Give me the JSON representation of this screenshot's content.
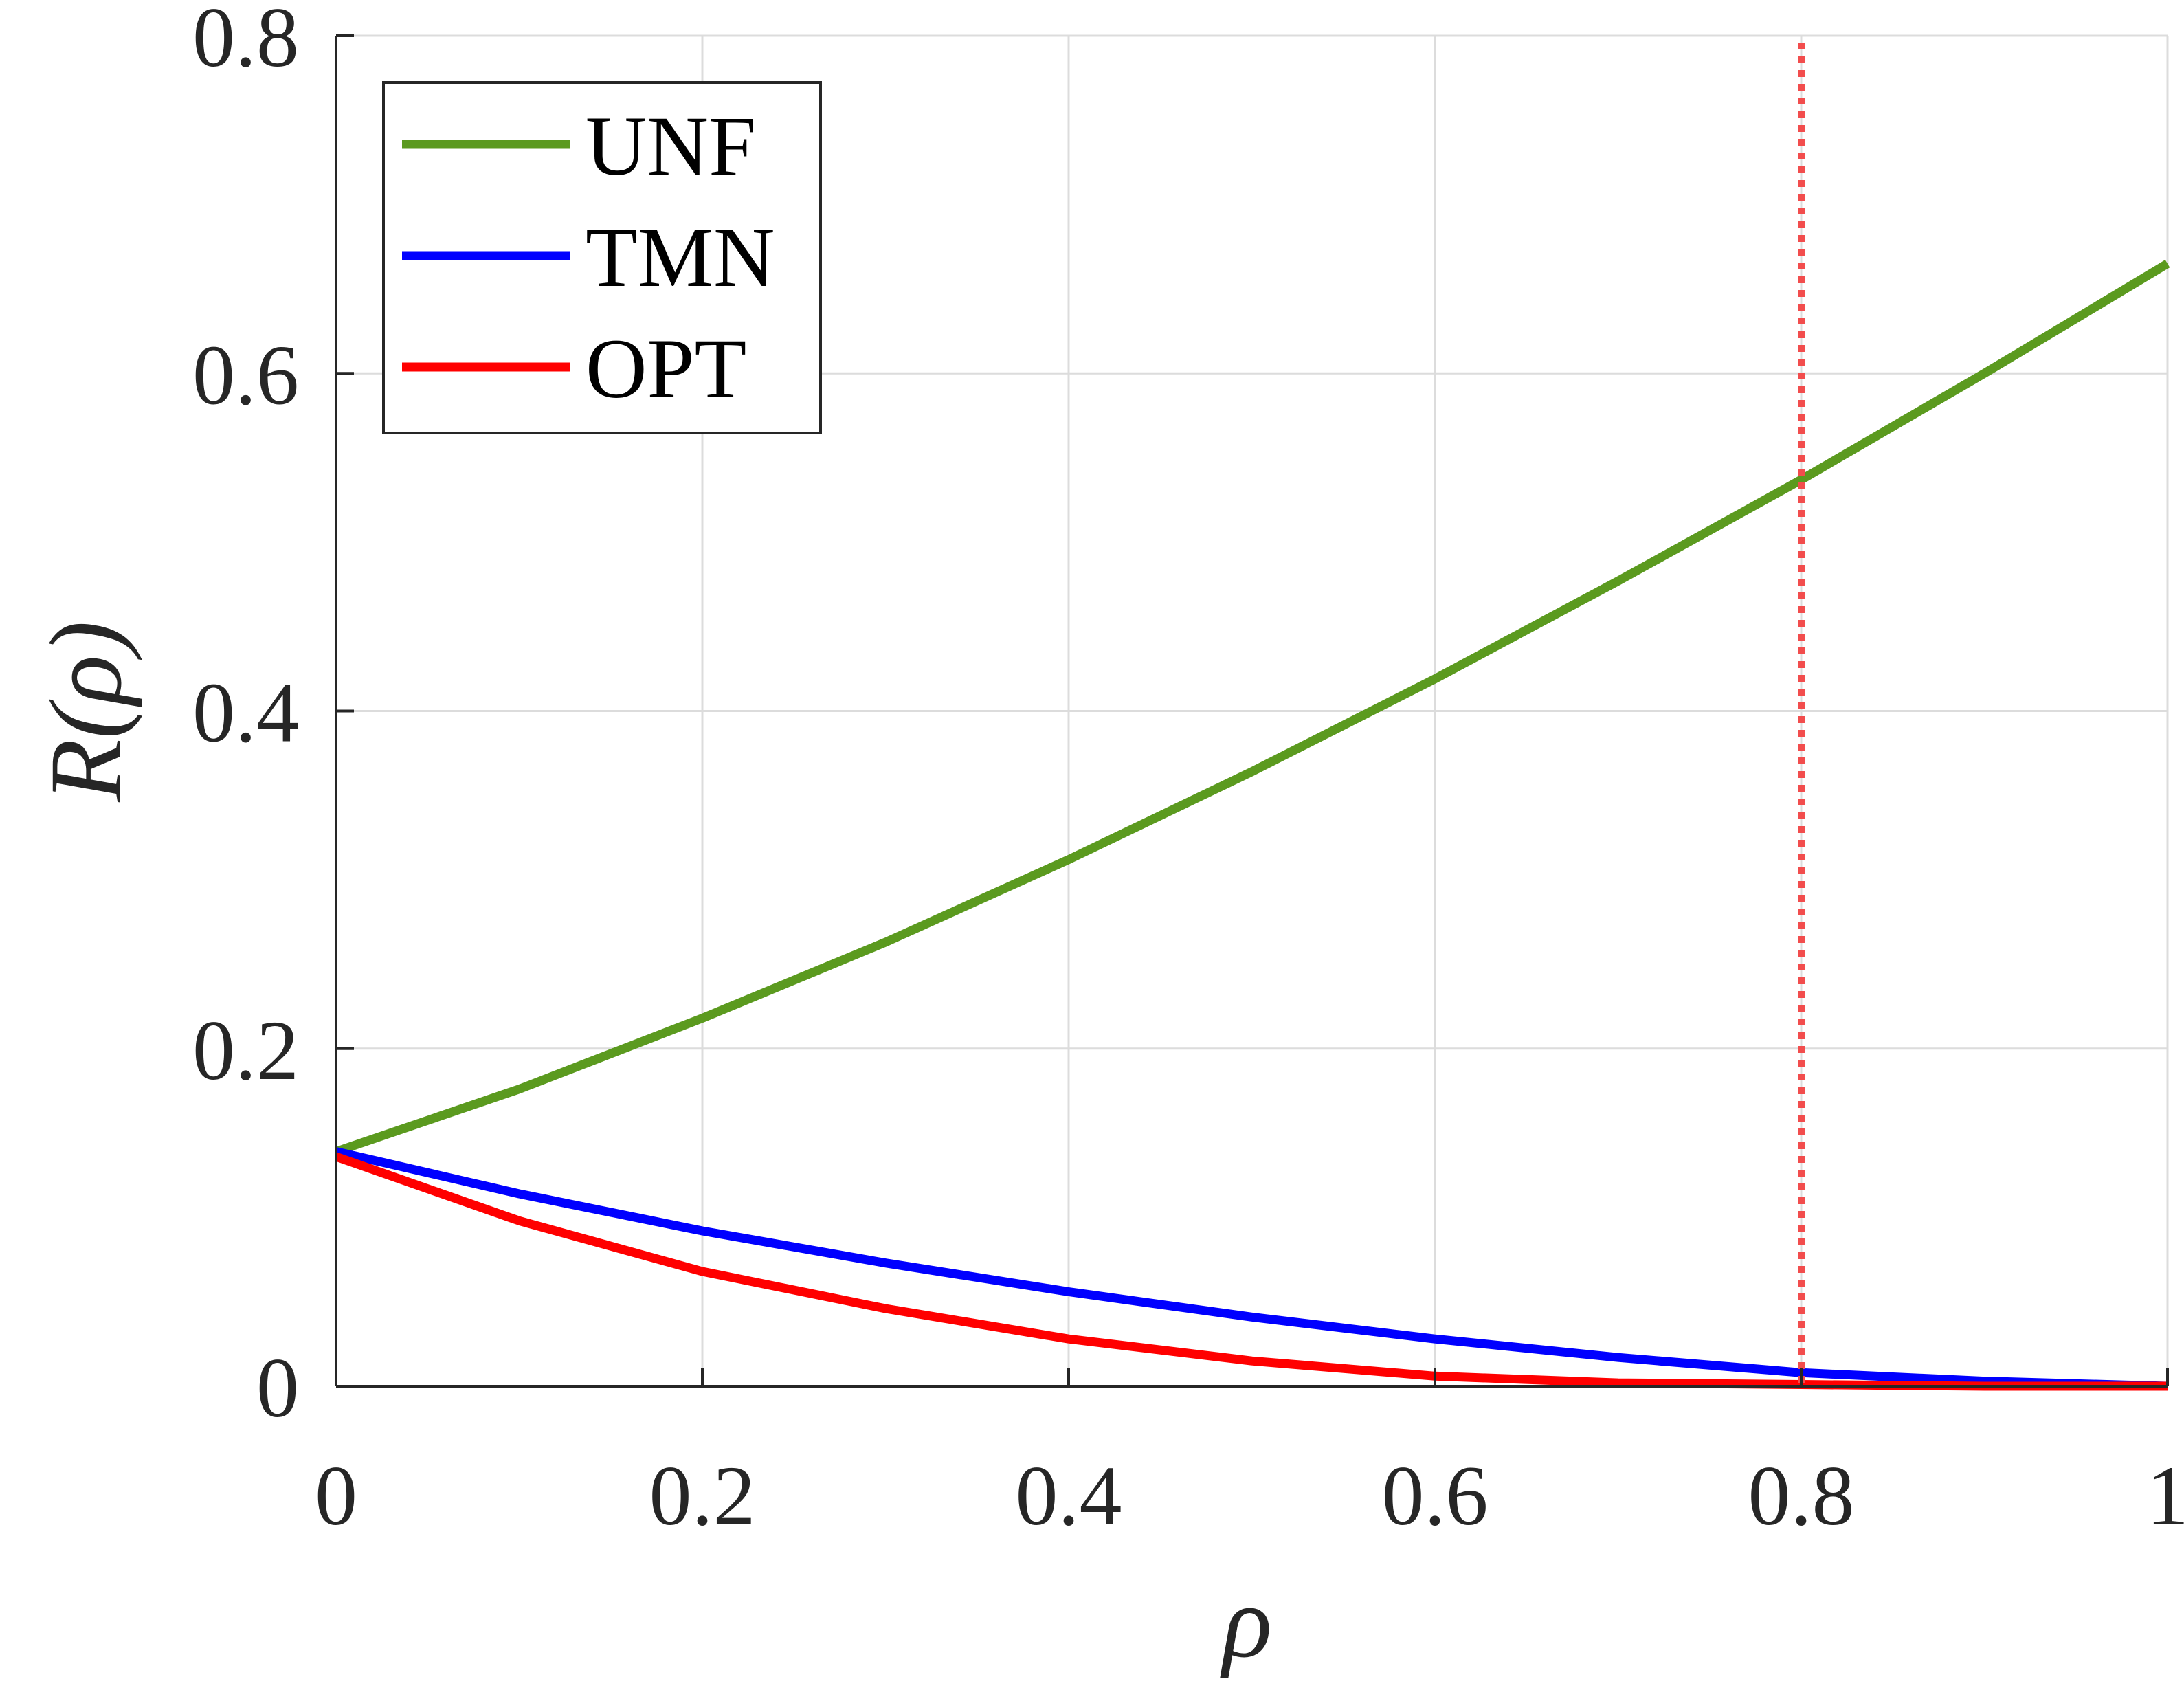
{
  "chart_data": {
    "type": "line",
    "title": "",
    "xlabel": "ρ",
    "ylabel": "R(ρ)",
    "xlim": [
      0,
      1
    ],
    "ylim": [
      0,
      0.8
    ],
    "grid": true,
    "legend_position": "top-left",
    "x_ticks": [
      0,
      0.2,
      0.4,
      0.6,
      0.8,
      1
    ],
    "x_tick_labels": [
      "0",
      "0.2",
      "0.4",
      "0.6",
      "0.8",
      "1"
    ],
    "y_ticks": [
      0,
      0.2,
      0.4,
      0.6,
      0.8
    ],
    "y_tick_labels": [
      "0",
      "0.2",
      "0.4",
      "0.6",
      "0.8"
    ],
    "x": [
      0,
      0.1,
      0.2,
      0.3,
      0.4,
      0.5,
      0.6,
      0.7,
      0.8,
      0.9,
      1.0
    ],
    "series": [
      {
        "name": "UNF",
        "color": "#5b9a1f",
        "values": [
          0.139,
          0.176,
          0.218,
          0.263,
          0.312,
          0.364,
          0.419,
          0.477,
          0.537,
          0.6,
          0.665
        ]
      },
      {
        "name": "TMN",
        "color": "#0000ff",
        "values": [
          0.139,
          0.114,
          0.092,
          0.073,
          0.056,
          0.041,
          0.028,
          0.017,
          0.008,
          0.003,
          0.0
        ]
      },
      {
        "name": "OPT",
        "color": "#ff0000",
        "values": [
          0.136,
          0.098,
          0.068,
          0.046,
          0.028,
          0.015,
          0.006,
          0.002,
          0.001,
          0.0,
          0.0
        ]
      }
    ],
    "reference_line": {
      "x": 0.8,
      "style": "dotted",
      "color": "#f24d4d"
    }
  }
}
